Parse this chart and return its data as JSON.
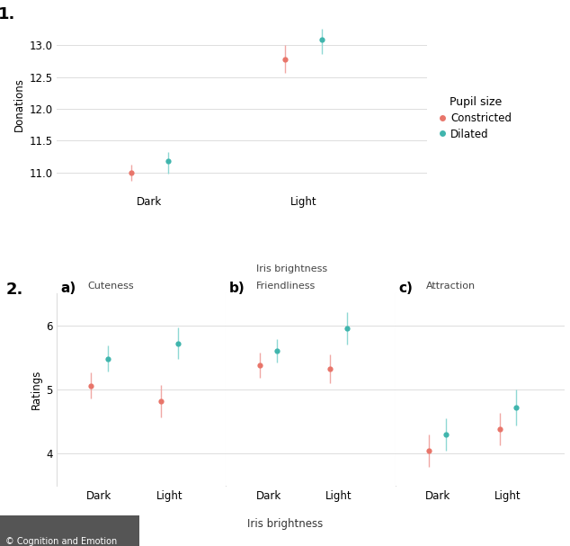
{
  "plot1": {
    "ylabel": "Donations",
    "xticks": [
      "Dark",
      "Light"
    ],
    "constricted": {
      "dark": 11.0,
      "light": 12.78
    },
    "dilated": {
      "dark": 11.18,
      "light": 13.08
    },
    "constricted_err": {
      "dark": [
        0.13,
        0.13
      ],
      "light": [
        0.22,
        0.22
      ]
    },
    "dilated_err": {
      "dark": [
        0.2,
        0.15
      ],
      "light": [
        0.22,
        0.18
      ]
    },
    "ylim": [
      10.7,
      13.45
    ],
    "yticks": [
      11.0,
      11.5,
      12.0,
      12.5,
      13.0
    ]
  },
  "plot2a": {
    "sublabel": "a)",
    "title": "Cuteness",
    "constricted": {
      "dark": 5.06,
      "light": 4.82
    },
    "dilated": {
      "dark": 5.48,
      "light": 5.72
    },
    "constricted_err": {
      "dark": [
        0.2,
        0.2
      ],
      "light": [
        0.25,
        0.25
      ]
    },
    "dilated_err": {
      "dark": [
        0.2,
        0.2
      ],
      "light": [
        0.25,
        0.25
      ]
    }
  },
  "plot2b": {
    "sublabel": "b)",
    "title": "Friendliness",
    "xlabel_top": "Iris brightness",
    "constricted": {
      "dark": 5.38,
      "light": 5.32
    },
    "dilated": {
      "dark": 5.6,
      "light": 5.95
    },
    "constricted_err": {
      "dark": [
        0.2,
        0.2
      ],
      "light": [
        0.22,
        0.22
      ]
    },
    "dilated_err": {
      "dark": [
        0.18,
        0.18
      ],
      "light": [
        0.25,
        0.25
      ]
    }
  },
  "plot2c": {
    "sublabel": "c)",
    "title": "Attraction",
    "constricted": {
      "dark": 4.05,
      "light": 4.38
    },
    "dilated": {
      "dark": 4.3,
      "light": 4.72
    },
    "constricted_err": {
      "dark": [
        0.25,
        0.25
      ],
      "light": [
        0.25,
        0.25
      ]
    },
    "dilated_err": {
      "dark": [
        0.25,
        0.25
      ],
      "light": [
        0.28,
        0.28
      ]
    }
  },
  "plot2_ylim": [
    3.5,
    6.5
  ],
  "plot2_yticks": [
    4,
    5,
    6
  ],
  "ylabel2": "Ratings",
  "xlabel2": "Iris brightness",
  "color_constricted": "#E8756A",
  "color_dilated": "#40B5AD",
  "color_constricted_err": "#F0A8A4",
  "color_dilated_err": "#8FD8D4",
  "legend_title": "Pupil size",
  "legend_entries": [
    "Constricted",
    "Dilated"
  ],
  "bg_color": "#FFFFFF",
  "grid_color": "#DDDDDD",
  "footer": "© Cognition and Emotion"
}
